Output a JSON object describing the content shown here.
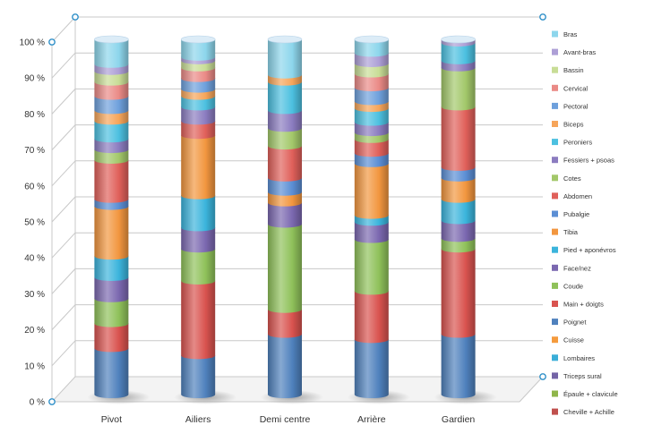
{
  "chart_data": {
    "type": "bar",
    "stacked": true,
    "percent": true,
    "style": "3d-cylinder",
    "ylim": [
      0,
      100
    ],
    "yticks": [
      "0 %",
      "10 %",
      "20 %",
      "30 %",
      "40 %",
      "50 %",
      "60 %",
      "70 %",
      "80 %",
      "90 %",
      "100 %"
    ],
    "categories": [
      "Pivot",
      "Ailiers",
      "Demi centre",
      "Arrière",
      "Gardien"
    ],
    "legend_position": "right",
    "grid": true,
    "series": [
      {
        "name": "Cheville + Achille",
        "color": "#c0504d",
        "values": [
          0,
          0,
          0,
          0,
          0
        ]
      },
      {
        "name": "Épaule + clavicule",
        "color": "#8fb54a",
        "values": [
          0,
          0,
          0,
          0,
          0
        ]
      },
      {
        "name": "Triceps sural",
        "color": "#7464a6",
        "values": [
          0,
          0,
          0,
          0,
          0
        ]
      },
      {
        "name": "Lombaires",
        "color": "#3aaed8",
        "values": [
          0,
          0,
          0,
          0,
          0
        ]
      },
      {
        "name": "Cuisse",
        "color": "#f59b3d",
        "values": [
          0,
          0,
          0,
          0,
          0
        ]
      },
      {
        "name": "Poignet",
        "color": "#4f81bd",
        "values": [
          13,
          11,
          17,
          16,
          17
        ]
      },
      {
        "name": "Main + doigts",
        "color": "#d9534f",
        "values": [
          7,
          21,
          7,
          14,
          24
        ]
      },
      {
        "name": "Coude",
        "color": "#8fc15a",
        "values": [
          7,
          9,
          24,
          15,
          3
        ]
      },
      {
        "name": "Face/nez",
        "color": "#7b68b0",
        "values": [
          6,
          6,
          6,
          5,
          5
        ]
      },
      {
        "name": "Pied + aponévros",
        "color": "#3bb4dc",
        "values": [
          6,
          9,
          0,
          2,
          6
        ]
      },
      {
        "name": "Tibia",
        "color": "#f2963f",
        "values": [
          14,
          17,
          3,
          15,
          6
        ]
      },
      {
        "name": "Pubalgie",
        "color": "#5b8ed4",
        "values": [
          2,
          0,
          4,
          3,
          3
        ]
      },
      {
        "name": "Abdomen",
        "color": "#e0605a",
        "values": [
          11,
          4,
          9,
          4,
          17
        ]
      },
      {
        "name": "Cotes",
        "color": "#a3c86a",
        "values": [
          3,
          0,
          5,
          2,
          11
        ]
      },
      {
        "name": "Fessiers + psoas",
        "color": "#8b7cc0",
        "values": [
          3,
          4,
          5,
          3,
          2
        ]
      },
      {
        "name": "Peroniers",
        "color": "#4cc0e0",
        "values": [
          5,
          3,
          8,
          4,
          5
        ]
      },
      {
        "name": "Biceps",
        "color": "#f6a55a",
        "values": [
          3,
          2,
          2,
          2,
          0
        ]
      },
      {
        "name": "Pectoral",
        "color": "#6ea0dc",
        "values": [
          4,
          3,
          0,
          4,
          0
        ]
      },
      {
        "name": "Cervical",
        "color": "#ea8a86",
        "values": [
          4,
          3,
          0,
          4,
          0
        ]
      },
      {
        "name": "Bassin",
        "color": "#c8dd96",
        "values": [
          3,
          2,
          0,
          3,
          0
        ]
      },
      {
        "name": "Avant-bras",
        "color": "#ad9fd6",
        "values": [
          2,
          1,
          0,
          3,
          1
        ]
      },
      {
        "name": "Bras",
        "color": "#8dd6ec",
        "values": [
          7,
          5,
          10,
          4,
          0
        ]
      }
    ]
  }
}
